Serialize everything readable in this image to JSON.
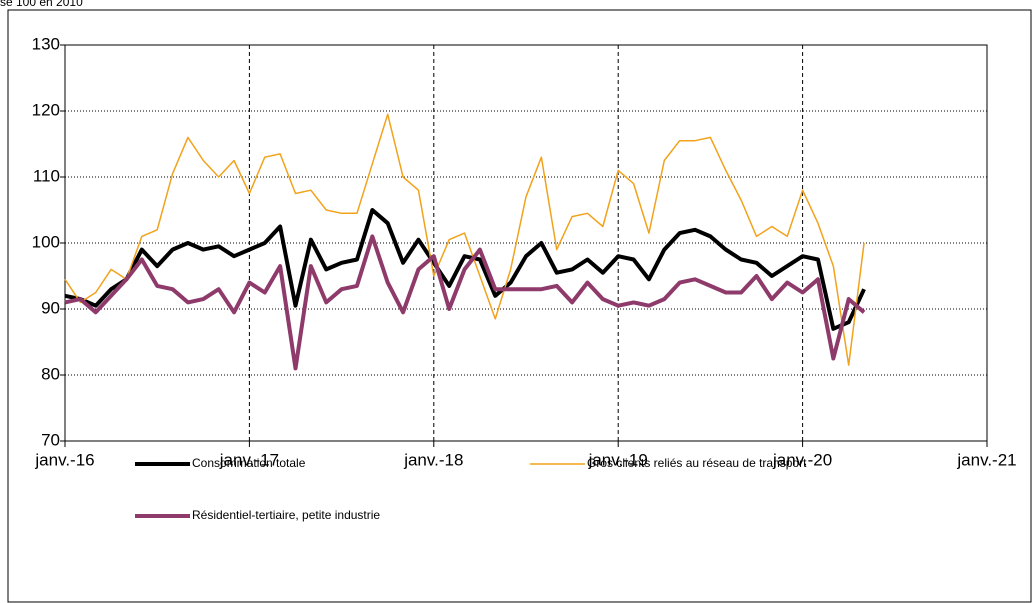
{
  "chart_data": {
    "type": "line",
    "subtitle": "se 100 en 2010",
    "x": [
      "2016-01",
      "2016-02",
      "2016-03",
      "2016-04",
      "2016-05",
      "2016-06",
      "2016-07",
      "2016-08",
      "2016-09",
      "2016-10",
      "2016-11",
      "2016-12",
      "2017-01",
      "2017-02",
      "2017-03",
      "2017-04",
      "2017-05",
      "2017-06",
      "2017-07",
      "2017-08",
      "2017-09",
      "2017-10",
      "2017-11",
      "2017-12",
      "2018-01",
      "2018-02",
      "2018-03",
      "2018-04",
      "2018-05",
      "2018-06",
      "2018-07",
      "2018-08",
      "2018-09",
      "2018-10",
      "2018-11",
      "2018-12",
      "2019-01",
      "2019-02",
      "2019-03",
      "2019-04",
      "2019-05",
      "2019-06",
      "2019-07",
      "2019-08",
      "2019-09",
      "2019-10",
      "2019-11",
      "2019-12",
      "2020-01",
      "2020-02",
      "2020-03",
      "2020-04",
      "2020-05"
    ],
    "series": [
      {
        "name": "Consommation totale",
        "color": "#000000",
        "width": 4,
        "values": [
          92,
          91.5,
          90.5,
          93,
          94.5,
          99,
          96.5,
          99,
          100,
          99,
          99.5,
          98,
          99,
          100,
          102.5,
          90.5,
          100.5,
          96,
          97,
          97.5,
          105,
          103,
          97,
          100.5,
          97,
          93.5,
          98,
          97.5,
          92,
          94,
          98,
          100,
          95.5,
          96,
          97.5,
          95.5,
          98,
          97.5,
          94.5,
          99,
          101.5,
          102,
          101,
          99,
          97.5,
          97,
          95,
          96.5,
          98,
          97.5,
          87,
          88,
          93
        ]
      },
      {
        "name": "Gros clients reliés au réseau de transport",
        "color": "#f2a21b",
        "width": 1.5,
        "values": [
          94.5,
          91,
          92.5,
          96,
          94.5,
          101,
          102,
          110.5,
          116,
          112.5,
          110,
          112.5,
          107.5,
          113,
          113.5,
          107.5,
          108,
          105,
          104.5,
          104.5,
          112,
          119.5,
          110,
          108,
          95,
          100.5,
          101.5,
          95,
          88.5,
          96,
          107,
          113,
          99,
          104,
          104.5,
          102.5,
          111,
          109,
          101.5,
          112.5,
          115.5,
          115.5,
          116,
          111,
          106.5,
          101,
          102.5,
          101,
          108,
          103,
          96.5,
          81.5,
          100
        ]
      },
      {
        "name": "Résidentiel-tertiaire, petite industrie",
        "color": "#8e3a6a",
        "width": 4,
        "values": [
          91,
          91.5,
          89.5,
          92,
          94.5,
          97.5,
          93.5,
          93,
          91,
          91.5,
          93,
          89.5,
          94,
          92.5,
          96.5,
          81,
          96.5,
          91,
          93,
          93.5,
          101,
          94,
          89.5,
          96,
          98,
          90,
          96,
          99,
          93,
          93,
          93,
          93,
          93.5,
          91,
          94,
          91.5,
          90.5,
          91,
          90.5,
          91.5,
          94,
          94.5,
          93.5,
          92.5,
          92.5,
          95,
          91.5,
          94,
          92.5,
          94.5,
          82.5,
          91.5,
          89.5
        ]
      }
    ],
    "xlim": [
      "2016-01",
      "2021-01"
    ],
    "xticks": [
      {
        "value": "2016-01",
        "label": "janv.-16"
      },
      {
        "value": "2017-01",
        "label": "janv.-17"
      },
      {
        "value": "2018-01",
        "label": "janv.-18"
      },
      {
        "value": "2019-01",
        "label": "janv.-19"
      },
      {
        "value": "2020-01",
        "label": "janv.-20"
      },
      {
        "value": "2021-01",
        "label": "janv.-21"
      }
    ],
    "ylim": [
      70,
      130
    ],
    "yticks": [
      70,
      80,
      90,
      100,
      110,
      120,
      130
    ],
    "grid": true
  }
}
